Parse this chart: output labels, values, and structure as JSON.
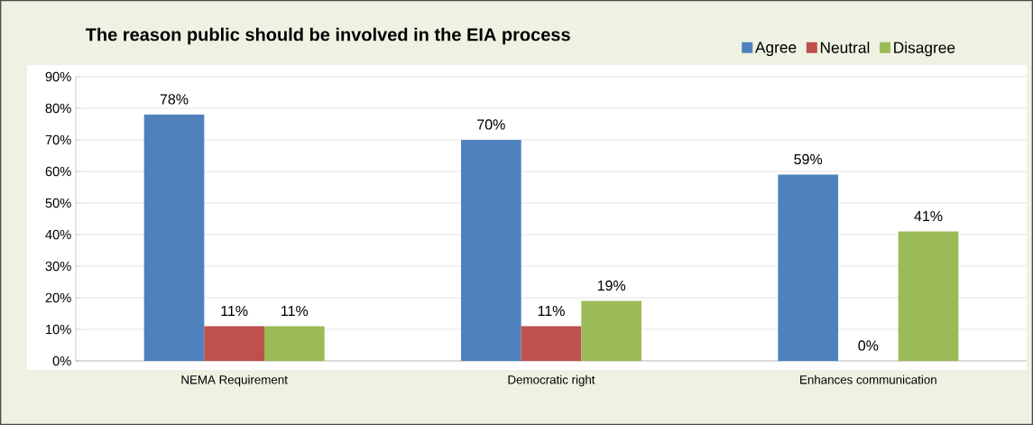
{
  "chart_data": {
    "type": "bar",
    "title": "The reason public should be involved in the EIA process",
    "categories": [
      "NEMA Requirement",
      "Democratic right",
      "Enhances communication"
    ],
    "series": [
      {
        "name": "Agree",
        "color": "#4f81bd",
        "values": [
          78,
          70,
          59
        ],
        "value_labels": [
          "78%",
          "70%",
          "59%"
        ]
      },
      {
        "name": "Neutral",
        "color": "#c0504d",
        "values": [
          11,
          11,
          0
        ],
        "value_labels": [
          "11%",
          "11%",
          "0%"
        ]
      },
      {
        "name": "Disagree",
        "color": "#9bbb59",
        "values": [
          11,
          19,
          41
        ],
        "value_labels": [
          "11%",
          "19%",
          "41%"
        ]
      }
    ],
    "ylim": [
      0,
      90
    ],
    "yticks": [
      {
        "value": 0,
        "label": "0%"
      },
      {
        "value": 10,
        "label": "10%"
      },
      {
        "value": 20,
        "label": "20%"
      },
      {
        "value": 30,
        "label": "30%"
      },
      {
        "value": 40,
        "label": "40%"
      },
      {
        "value": 50,
        "label": "50%"
      },
      {
        "value": 60,
        "label": "60%"
      },
      {
        "value": 70,
        "label": "70%"
      },
      {
        "value": 80,
        "label": "80%"
      },
      {
        "value": 90,
        "label": "90%"
      }
    ],
    "grid": "y",
    "legend": "top right"
  }
}
